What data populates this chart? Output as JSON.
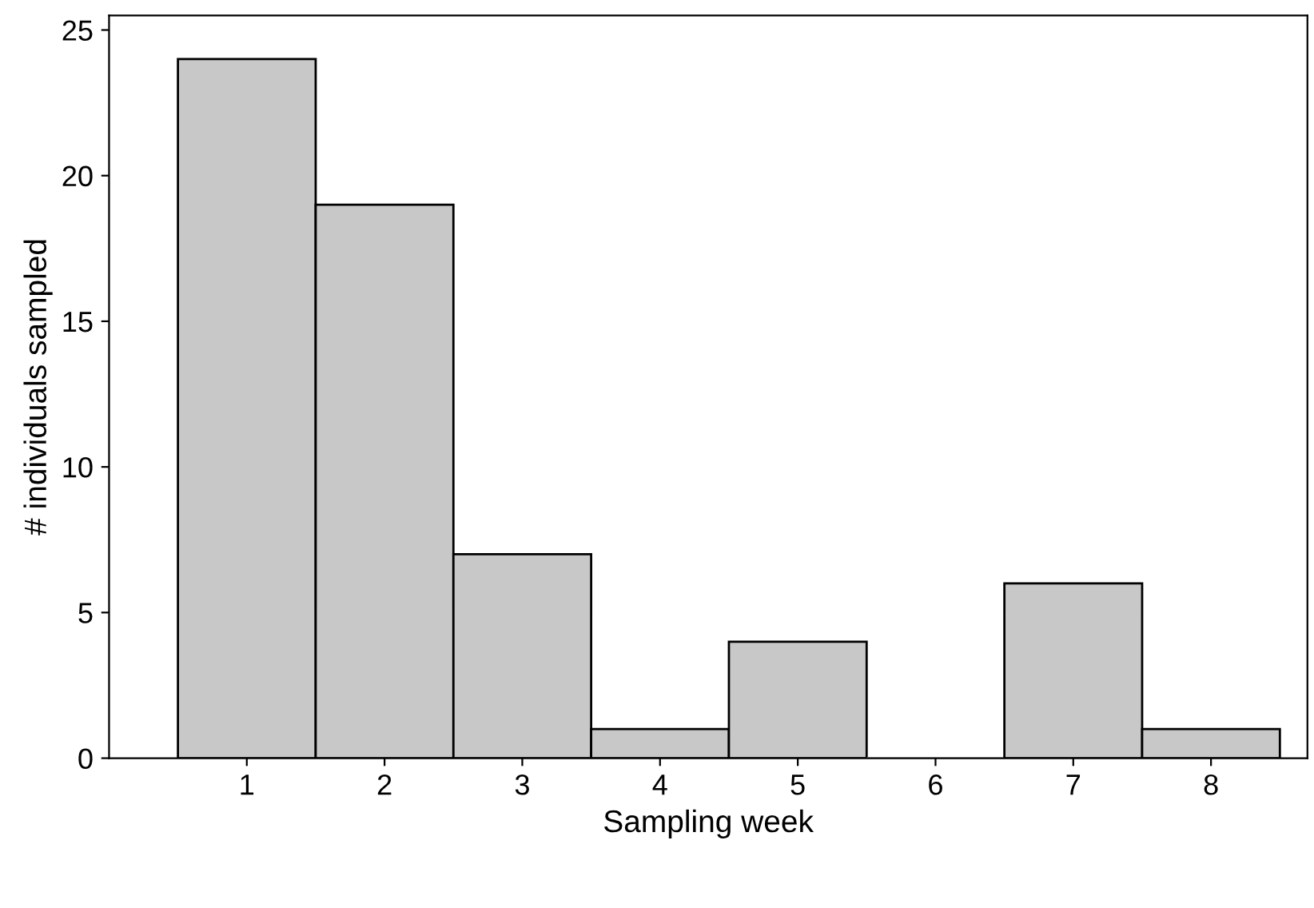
{
  "chart_data": {
    "type": "bar",
    "xlabel": "Sampling week",
    "ylabel": "# individuals sampled",
    "categories": [
      "1",
      "2",
      "3",
      "4",
      "5",
      "6",
      "7",
      "8"
    ],
    "values": [
      24,
      19,
      7,
      1,
      4,
      0,
      6,
      1
    ],
    "color": "#c8c8c8",
    "ylim": [
      0,
      25.5
    ],
    "yticks": [
      0,
      5,
      10,
      15,
      20,
      25
    ],
    "grid": false
  }
}
